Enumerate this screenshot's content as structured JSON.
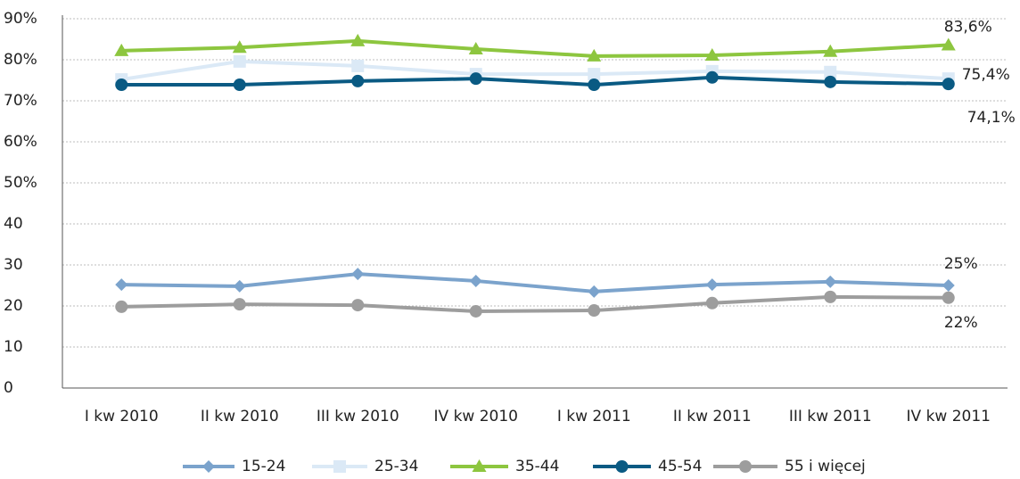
{
  "chart_data": {
    "type": "line",
    "categories": [
      "I kw 2010",
      "II kw 2010",
      "III kw 2010",
      "IV kw 2010",
      "I kw 2011",
      "II kw 2011",
      "III kw 2011",
      "IV kw 2011"
    ],
    "series": [
      {
        "name": "15-24",
        "color": "#7ba3cc",
        "marker": "diamond",
        "values": [
          25.2,
          24.8,
          27.8,
          26.1,
          23.5,
          25.2,
          25.9,
          25
        ],
        "value_labels": [
          null,
          null,
          null,
          null,
          null,
          null,
          null,
          "25%"
        ]
      },
      {
        "name": "25-34",
        "color": "#dbe9f6",
        "marker": "square",
        "values": [
          75.2,
          79.6,
          78.5,
          76.5,
          76.5,
          77.2,
          77,
          75.4
        ],
        "value_labels": [
          null,
          null,
          null,
          null,
          null,
          null,
          null,
          "75,4%"
        ]
      },
      {
        "name": "35-44",
        "color": "#8dc63f",
        "marker": "triangle",
        "values": [
          82.2,
          83,
          84.6,
          82.6,
          80.9,
          81.1,
          82,
          83.6
        ],
        "value_labels": [
          null,
          null,
          null,
          null,
          null,
          null,
          null,
          "83,6%"
        ]
      },
      {
        "name": "45-54",
        "color": "#0a5a83",
        "marker": "circle",
        "values": [
          73.9,
          73.9,
          74.8,
          75.4,
          73.9,
          75.7,
          74.6,
          74.1
        ],
        "value_labels": [
          null,
          null,
          null,
          null,
          null,
          null,
          null,
          "74,1%"
        ]
      },
      {
        "name": "55 i więcej",
        "color": "#9d9d9d",
        "marker": "circle",
        "values": [
          19.8,
          20.4,
          20.2,
          18.7,
          18.9,
          20.7,
          22.2,
          22
        ],
        "value_labels": [
          null,
          null,
          null,
          null,
          null,
          null,
          null,
          "22%"
        ]
      }
    ],
    "ylim": [
      0,
      90
    ],
    "yticks": [
      0,
      10,
      20,
      30,
      40,
      {
        "value": 50,
        "label": "50%"
      },
      {
        "value": 60,
        "label": "60%"
      },
      {
        "value": 70,
        "label": "70%"
      },
      {
        "value": 80,
        "label": "80%"
      },
      {
        "value": 90,
        "label": "90%"
      }
    ],
    "grid": true,
    "legend": "bottom"
  }
}
